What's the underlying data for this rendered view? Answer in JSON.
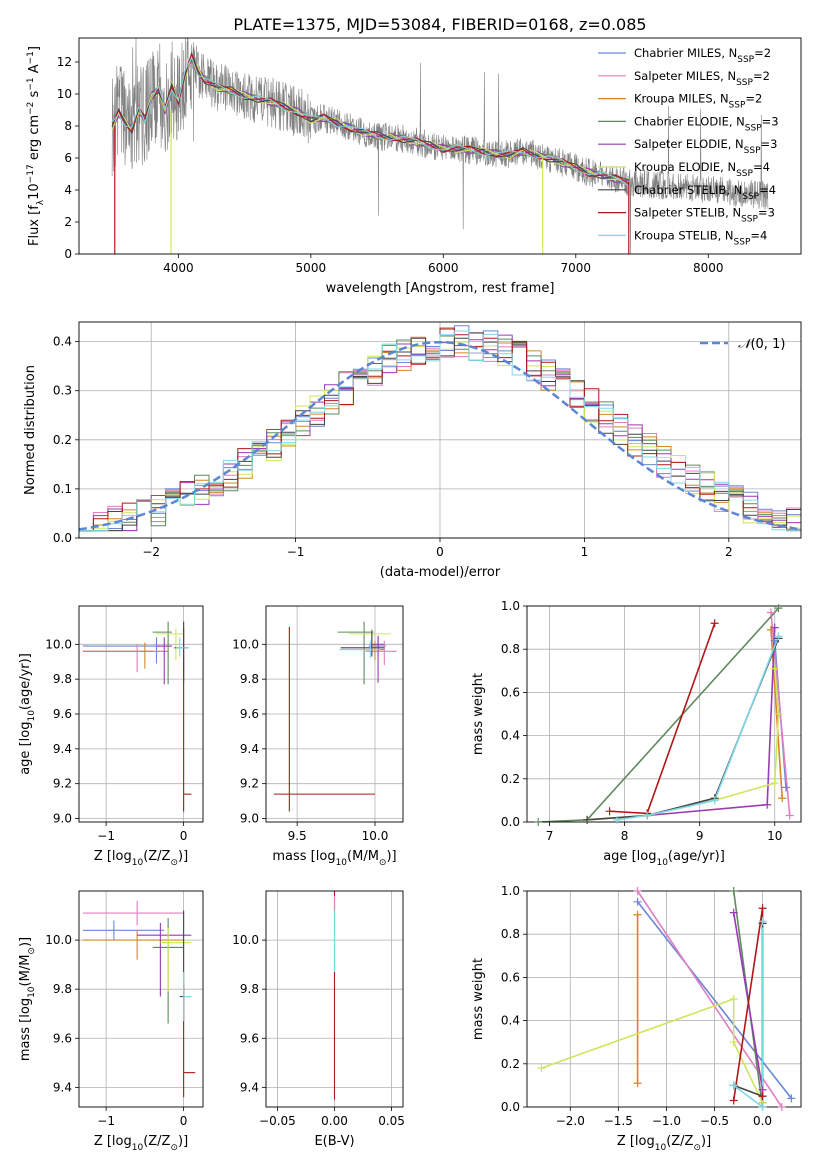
{
  "figure_title": "PLATE=1375, MJD=53084, FIBERID=0168, z=0.085",
  "colors": {
    "chabrier_miles": "#6a87d6",
    "salpeter_miles": "#e07fc0",
    "kroupa_miles": "#d3862a",
    "chabrier_elodie": "#5e8a5e",
    "salpeter_elodie": "#9b3ab5",
    "kroupa_elodie": "#cfe65a",
    "chabrier_stelib": "#444444",
    "salpeter_stelib": "#b01818",
    "kroupa_stelib": "#7fd8e8",
    "spectrum": "#808080",
    "gauss": "#5b86d4",
    "grid": "#b0b0b0"
  },
  "legend_spectrum": [
    {
      "label_pre": "Chabrier MILES, N",
      "sub": "SSP",
      "label_post": "=2",
      "color_key": "chabrier_miles"
    },
    {
      "label_pre": "Salpeter MILES, N",
      "sub": "SSP",
      "label_post": "=2",
      "color_key": "salpeter_miles"
    },
    {
      "label_pre": "Kroupa MILES, N",
      "sub": "SSP",
      "label_post": "=2",
      "color_key": "kroupa_miles"
    },
    {
      "label_pre": "Chabrier ELODIE, N",
      "sub": "SSP",
      "label_post": "=3",
      "color_key": "chabrier_elodie"
    },
    {
      "label_pre": "Salpeter ELODIE, N",
      "sub": "SSP",
      "label_post": "=3",
      "color_key": "salpeter_elodie"
    },
    {
      "label_pre": "Kroupa ELODIE, N",
      "sub": "SSP",
      "label_post": "=4",
      "color_key": "kroupa_elodie"
    },
    {
      "label_pre": "Chabrier STELIB, N",
      "sub": "SSP",
      "label_post": "=4",
      "color_key": "chabrier_stelib"
    },
    {
      "label_pre": "Salpeter STELIB, N",
      "sub": "SSP",
      "label_post": "=3",
      "color_key": "salpeter_stelib"
    },
    {
      "label_pre": "Kroupa STELIB, N",
      "sub": "SSP",
      "label_post": "=4",
      "color_key": "kroupa_stelib"
    }
  ],
  "chart_data": [
    {
      "id": "spectrum",
      "type": "line",
      "ylabel_pre": "Flux [f",
      "ylabel_sub": "λ",
      "ylabel_mid": "10",
      "ylabel_sup1": "−17",
      "ylabel_mid2": " erg cm",
      "ylabel_sup2": "−2",
      "ylabel_mid3": " s",
      "ylabel_sup3": "−1",
      "ylabel_mid4": " A",
      "ylabel_sup4": "−1",
      "ylabel_end": "]",
      "xlabel": "wavelength [Angstrom, rest frame]",
      "xlim": [
        3250,
        8700
      ],
      "ylim": [
        0,
        13.5
      ],
      "xticks": [
        4000,
        5000,
        6000,
        7000,
        8000
      ],
      "yticks": [
        0,
        2,
        4,
        6,
        8,
        10,
        12
      ],
      "model_x": [
        3500,
        3550,
        3600,
        3650,
        3700,
        3750,
        3800,
        3850,
        3900,
        3950,
        4000,
        4050,
        4100,
        4150,
        4200,
        4300,
        4400,
        4500,
        4600,
        4700,
        4800,
        4900,
        5000,
        5100,
        5200,
        5300,
        5400,
        5500,
        5600,
        5700,
        5800,
        5900,
        6000,
        6100,
        6200,
        6300,
        6400,
        6500,
        6600,
        6700,
        6800,
        6900,
        7000,
        7100,
        7200,
        7300,
        7400
      ],
      "model_y": [
        8.0,
        8.8,
        8.2,
        7.8,
        9.0,
        8.4,
        9.9,
        10.3,
        9.0,
        10.5,
        9.6,
        11.2,
        12.3,
        11.4,
        10.9,
        10.4,
        10.2,
        9.9,
        9.7,
        9.5,
        9.2,
        8.9,
        8.4,
        8.5,
        8.2,
        7.9,
        7.6,
        7.4,
        7.3,
        7.2,
        7.0,
        6.8,
        6.6,
        6.6,
        6.5,
        6.4,
        6.3,
        6.2,
        6.4,
        6.2,
        6.0,
        5.7,
        5.4,
        5.1,
        4.9,
        4.7,
        4.5
      ],
      "spectrum_x_range": [
        3500,
        8450
      ]
    },
    {
      "id": "residuals",
      "type": "bar",
      "ylabel": "Normed distribution",
      "xlabel": "(data-model)/error",
      "xlim": [
        -2.5,
        2.5
      ],
      "ylim": [
        0,
        0.44
      ],
      "xticks": [
        -2,
        -1,
        0,
        1,
        2
      ],
      "yticks": [
        0.0,
        0.1,
        0.2,
        0.3,
        0.4
      ],
      "gauss_label_pre": "𝒩",
      "gauss_label_post": "(0, 1)",
      "bin_width": 0.1
    },
    {
      "id": "age_vs_Z",
      "type": "scatter",
      "xlabel_pre": "Z [log",
      "xlabel_sub": "10",
      "xlabel_post": "(Z/Z",
      "xlabel_sub2": "⊙",
      "xlabel_end": ")]",
      "ylabel_pre": "age  [log",
      "ylabel_sub": "10",
      "ylabel_post": "(age/yr)]",
      "xlim": [
        -1.35,
        0.25
      ],
      "ylim": [
        8.98,
        10.22
      ],
      "xticks": [
        -1,
        0
      ],
      "yticks": [
        9.0,
        9.2,
        9.4,
        9.6,
        9.8,
        10.0
      ],
      "points": [
        {
          "color_key": "chabrier_miles",
          "x": -0.35,
          "y": 9.99,
          "xerr": [
            0.95,
            0.15
          ],
          "yerr": [
            0.1,
            0.05
          ]
        },
        {
          "color_key": "salpeter_miles",
          "x": -0.6,
          "y": 9.96,
          "xerr": [
            0.7,
            0.2
          ],
          "yerr": [
            0.12,
            0.04
          ]
        },
        {
          "color_key": "kroupa_miles",
          "x": -0.5,
          "y": 9.96,
          "xerr": [
            0.8,
            0.3
          ],
          "yerr": [
            0.1,
            0.05
          ]
        },
        {
          "color_key": "chabrier_elodie",
          "x": -0.2,
          "y": 10.07,
          "xerr": [
            0.2,
            0.05
          ],
          "yerr": [
            0.3,
            0.06
          ]
        },
        {
          "color_key": "salpeter_elodie",
          "x": -0.25,
          "y": 9.99,
          "xerr": [
            0.1,
            0.1
          ],
          "yerr": [
            0.22,
            0.05
          ]
        },
        {
          "color_key": "kroupa_elodie",
          "x": -0.1,
          "y": 10.06,
          "xerr": [
            0.25,
            0.1
          ],
          "yerr": [
            0.15,
            0.03
          ]
        },
        {
          "color_key": "chabrier_stelib",
          "x": 0.0,
          "y": 9.98,
          "xerr": [
            0.12,
            0.05
          ],
          "yerr": [
            0.2,
            0.15
          ]
        },
        {
          "color_key": "salpeter_stelib",
          "x": 0.0,
          "y": 9.14,
          "xerr": [
            0.0,
            0.1
          ],
          "yerr": [
            0.1,
            0.95
          ]
        },
        {
          "color_key": "kroupa_stelib",
          "x": -0.05,
          "y": 9.98,
          "xerr": [
            0.05,
            0.12
          ],
          "yerr": [
            0.05,
            0.06
          ]
        }
      ]
    },
    {
      "id": "age_vs_mass",
      "type": "scatter",
      "xlabel_pre": "mass [log",
      "xlabel_sub": "10",
      "xlabel_post": "(M/M",
      "xlabel_sub2": "⊙",
      "xlabel_end": ")]",
      "xlim": [
        9.3,
        10.18
      ],
      "ylim": [
        8.98,
        10.22
      ],
      "xticks": [
        9.5,
        10.0
      ],
      "yticks": [
        9.0,
        9.2,
        9.4,
        9.6,
        9.8,
        10.0
      ],
      "points": [
        {
          "color_key": "chabrier_miles",
          "x": 10.02,
          "y": 9.99,
          "xerr": [
            0.06,
            0.05
          ],
          "yerr": [
            0.05,
            0.05
          ]
        },
        {
          "color_key": "salpeter_miles",
          "x": 10.06,
          "y": 9.96,
          "xerr": [
            0.12,
            0.08
          ],
          "yerr": [
            0.08,
            0.06
          ]
        },
        {
          "color_key": "kroupa_miles",
          "x": 10.0,
          "y": 9.97,
          "xerr": [
            0.1,
            0.06
          ],
          "yerr": [
            0.06,
            0.05
          ]
        },
        {
          "color_key": "chabrier_elodie",
          "x": 9.93,
          "y": 10.07,
          "xerr": [
            0.17,
            0.06
          ],
          "yerr": [
            0.3,
            0.06
          ]
        },
        {
          "color_key": "salpeter_elodie",
          "x": 10.02,
          "y": 10.0,
          "xerr": [
            0.05,
            0.04
          ],
          "yerr": [
            0.22,
            0.05
          ]
        },
        {
          "color_key": "kroupa_elodie",
          "x": 9.98,
          "y": 10.06,
          "xerr": [
            0.15,
            0.12
          ],
          "yerr": [
            0.12,
            0.03
          ]
        },
        {
          "color_key": "chabrier_stelib",
          "x": 9.98,
          "y": 9.98,
          "xerr": [
            0.2,
            0.08
          ],
          "yerr": [
            0.05,
            0.1
          ]
        },
        {
          "color_key": "salpeter_stelib",
          "x": 9.45,
          "y": 9.14,
          "xerr": [
            0.1,
            0.55
          ],
          "yerr": [
            0.1,
            0.96
          ]
        },
        {
          "color_key": "kroupa_stelib",
          "x": 9.97,
          "y": 9.97,
          "xerr": [
            0.2,
            0.06
          ],
          "yerr": [
            0.05,
            0.05
          ]
        }
      ]
    },
    {
      "id": "mw_vs_age",
      "type": "line",
      "ylabel": "mass weight",
      "xlabel_pre": "age  [log",
      "xlabel_sub": "10",
      "xlabel_post": "(age/yr)]",
      "xlim": [
        6.7,
        10.35
      ],
      "ylim": [
        0,
        1.0
      ],
      "xticks": [
        7,
        8,
        9,
        10
      ],
      "yticks": [
        0.0,
        0.2,
        0.4,
        0.6,
        0.8,
        1.0
      ],
      "series": [
        {
          "color_key": "chabrier_miles",
          "points": [
            [
              10.0,
              0.84
            ],
            [
              10.15,
              0.16
            ]
          ]
        },
        {
          "color_key": "salpeter_miles",
          "points": [
            [
              9.95,
              0.97
            ],
            [
              10.2,
              0.03
            ]
          ]
        },
        {
          "color_key": "kroupa_miles",
          "points": [
            [
              9.95,
              0.89
            ],
            [
              10.1,
              0.11
            ]
          ]
        },
        {
          "color_key": "chabrier_elodie",
          "points": [
            [
              6.85,
              0.0
            ],
            [
              7.5,
              0.01
            ],
            [
              10.05,
              0.99
            ]
          ]
        },
        {
          "color_key": "salpeter_elodie",
          "points": [
            [
              8.3,
              0.03
            ],
            [
              9.9,
              0.08
            ],
            [
              10.0,
              0.9
            ]
          ]
        },
        {
          "color_key": "kroupa_elodie",
          "points": [
            [
              7.5,
              0.01
            ],
            [
              8.3,
              0.03
            ],
            [
              9.2,
              0.1
            ],
            [
              10.0,
              0.18
            ],
            [
              10.05,
              0.5
            ],
            [
              10.0,
              0.71
            ]
          ]
        },
        {
          "color_key": "chabrier_stelib",
          "points": [
            [
              7.5,
              0.01
            ],
            [
              8.3,
              0.03
            ],
            [
              9.2,
              0.11
            ],
            [
              10.05,
              0.85
            ]
          ]
        },
        {
          "color_key": "salpeter_stelib",
          "points": [
            [
              7.8,
              0.05
            ],
            [
              8.3,
              0.04
            ],
            [
              9.2,
              0.92
            ]
          ]
        },
        {
          "color_key": "kroupa_stelib",
          "points": [
            [
              7.9,
              0.01
            ],
            [
              8.3,
              0.03
            ],
            [
              9.2,
              0.1
            ],
            [
              10.05,
              0.86
            ]
          ]
        }
      ]
    },
    {
      "id": "mass_vs_Z",
      "type": "scatter",
      "xlabel_pre": "Z [log",
      "xlabel_sub": "10",
      "xlabel_post": "(Z/Z",
      "xlabel_sub2": "⊙",
      "xlabel_end": ")]",
      "ylabel_pre": "mass [log",
      "ylabel_sub": "10",
      "ylabel_post": "(M/M",
      "ylabel_sub2": "⊙",
      "ylabel_end": ")]",
      "xlim": [
        -1.35,
        0.25
      ],
      "ylim": [
        9.32,
        10.2
      ],
      "xticks": [
        -1,
        0
      ],
      "yticks": [
        9.4,
        9.6,
        9.8,
        10.0
      ],
      "points": [
        {
          "color_key": "chabrier_miles",
          "x": -0.9,
          "y": 10.04,
          "xerr": [
            0.4,
            0.65
          ],
          "yerr": [
            0.04,
            0.04
          ]
        },
        {
          "color_key": "salpeter_miles",
          "x": -0.6,
          "y": 10.11,
          "xerr": [
            0.7,
            0.6
          ],
          "yerr": [
            0.05,
            0.05
          ]
        },
        {
          "color_key": "kroupa_miles",
          "x": -0.6,
          "y": 10.0,
          "xerr": [
            0.7,
            0.6
          ],
          "yerr": [
            0.08,
            0.04
          ]
        },
        {
          "color_key": "chabrier_elodie",
          "x": -0.2,
          "y": 9.97,
          "xerr": [
            0.2,
            0.2
          ],
          "yerr": [
            0.31,
            0.12
          ]
        },
        {
          "color_key": "salpeter_elodie",
          "x": -0.3,
          "y": 10.02,
          "xerr": [
            0.3,
            0.4
          ],
          "yerr": [
            0.25,
            0.05
          ]
        },
        {
          "color_key": "kroupa_elodie",
          "x": -0.2,
          "y": 9.99,
          "xerr": [
            0.1,
            0.3
          ],
          "yerr": [
            0.2,
            0.06
          ]
        },
        {
          "color_key": "chabrier_stelib",
          "x": 0.0,
          "y": 9.77,
          "xerr": [
            0.05,
            0.1
          ],
          "yerr": [
            0.1,
            0.35
          ]
        },
        {
          "color_key": "salpeter_stelib",
          "x": 0.0,
          "y": 9.46,
          "xerr": [
            0.0,
            0.15
          ],
          "yerr": [
            0.1,
            0.36
          ]
        },
        {
          "color_key": "kroupa_stelib",
          "x": 0.0,
          "y": 9.77,
          "xerr": [
            0.0,
            0.1
          ],
          "yerr": [
            0.1,
            0.1
          ]
        }
      ]
    },
    {
      "id": "mass_vs_ebv",
      "type": "scatter",
      "xlabel": "E(B-V)",
      "xlim": [
        -0.06,
        0.06
      ],
      "ylim": [
        9.32,
        10.2
      ],
      "xticks": [
        -0.05,
        0.0,
        0.05
      ],
      "xticklabels": [
        "−0.05",
        "0.00",
        "0.05"
      ],
      "yticks": [
        9.4,
        9.6,
        9.8,
        10.0
      ],
      "points": [
        {
          "color_key": "salpeter_stelib",
          "x": 0.0,
          "y": 9.75,
          "xerr": [
            0,
            0
          ],
          "yerr": [
            0.4,
            0.45
          ]
        },
        {
          "color_key": "salpeter_miles",
          "x": 0.0,
          "y": 10.1,
          "xerr": [
            0,
            0
          ],
          "yerr": [
            0.05,
            0.08
          ]
        },
        {
          "color_key": "kroupa_stelib",
          "x": 0.0,
          "y": 9.97,
          "xerr": [
            0,
            0
          ],
          "yerr": [
            0.1,
            0.15
          ]
        }
      ]
    },
    {
      "id": "mw_vs_Z",
      "type": "line",
      "ylabel": "mass weight",
      "xlabel_pre": "Z [log",
      "xlabel_sub": "10",
      "xlabel_post": "(Z/Z",
      "xlabel_sub2": "⊙",
      "xlabel_end": ")]",
      "xlim": [
        -2.45,
        0.4
      ],
      "ylim": [
        0,
        1.0
      ],
      "xticks": [
        -2.0,
        -1.5,
        -1.0,
        -0.5,
        0.0
      ],
      "xticklabels": [
        "−2.0",
        "−1.5",
        "−1.0",
        "−0.5",
        "0.0"
      ],
      "yticks": [
        0.0,
        0.2,
        0.4,
        0.6,
        0.8,
        1.0
      ],
      "series": [
        {
          "color_key": "chabrier_miles",
          "points": [
            [
              -1.3,
              0.95
            ],
            [
              0.3,
              0.04
            ]
          ]
        },
        {
          "color_key": "salpeter_miles",
          "points": [
            [
              -1.3,
              1.0
            ],
            [
              0.2,
              0.0
            ]
          ]
        },
        {
          "color_key": "kroupa_miles",
          "points": [
            [
              -1.3,
              0.89
            ],
            [
              -1.3,
              0.11
            ]
          ]
        },
        {
          "color_key": "chabrier_elodie",
          "points": [
            [
              -0.3,
              1.0
            ],
            [
              0.0,
              0.0
            ]
          ]
        },
        {
          "color_key": "salpeter_elodie",
          "points": [
            [
              -0.3,
              0.9
            ],
            [
              0.0,
              0.08
            ],
            [
              0.0,
              0.02
            ]
          ]
        },
        {
          "color_key": "kroupa_elodie",
          "points": [
            [
              -2.3,
              0.18
            ],
            [
              -0.3,
              0.5
            ],
            [
              -0.3,
              0.3
            ],
            [
              0.0,
              0.02
            ]
          ]
        },
        {
          "color_key": "chabrier_stelib",
          "points": [
            [
              -0.3,
              0.1
            ],
            [
              0.0,
              0.05
            ],
            [
              0.0,
              0.85
            ]
          ]
        },
        {
          "color_key": "salpeter_stelib",
          "points": [
            [
              -0.3,
              0.03
            ],
            [
              0.0,
              0.92
            ],
            [
              0.0,
              0.05
            ]
          ]
        },
        {
          "color_key": "kroupa_stelib",
          "points": [
            [
              -0.3,
              0.1
            ],
            [
              0.0,
              0.0
            ],
            [
              0.0,
              0.86
            ]
          ]
        }
      ]
    }
  ]
}
